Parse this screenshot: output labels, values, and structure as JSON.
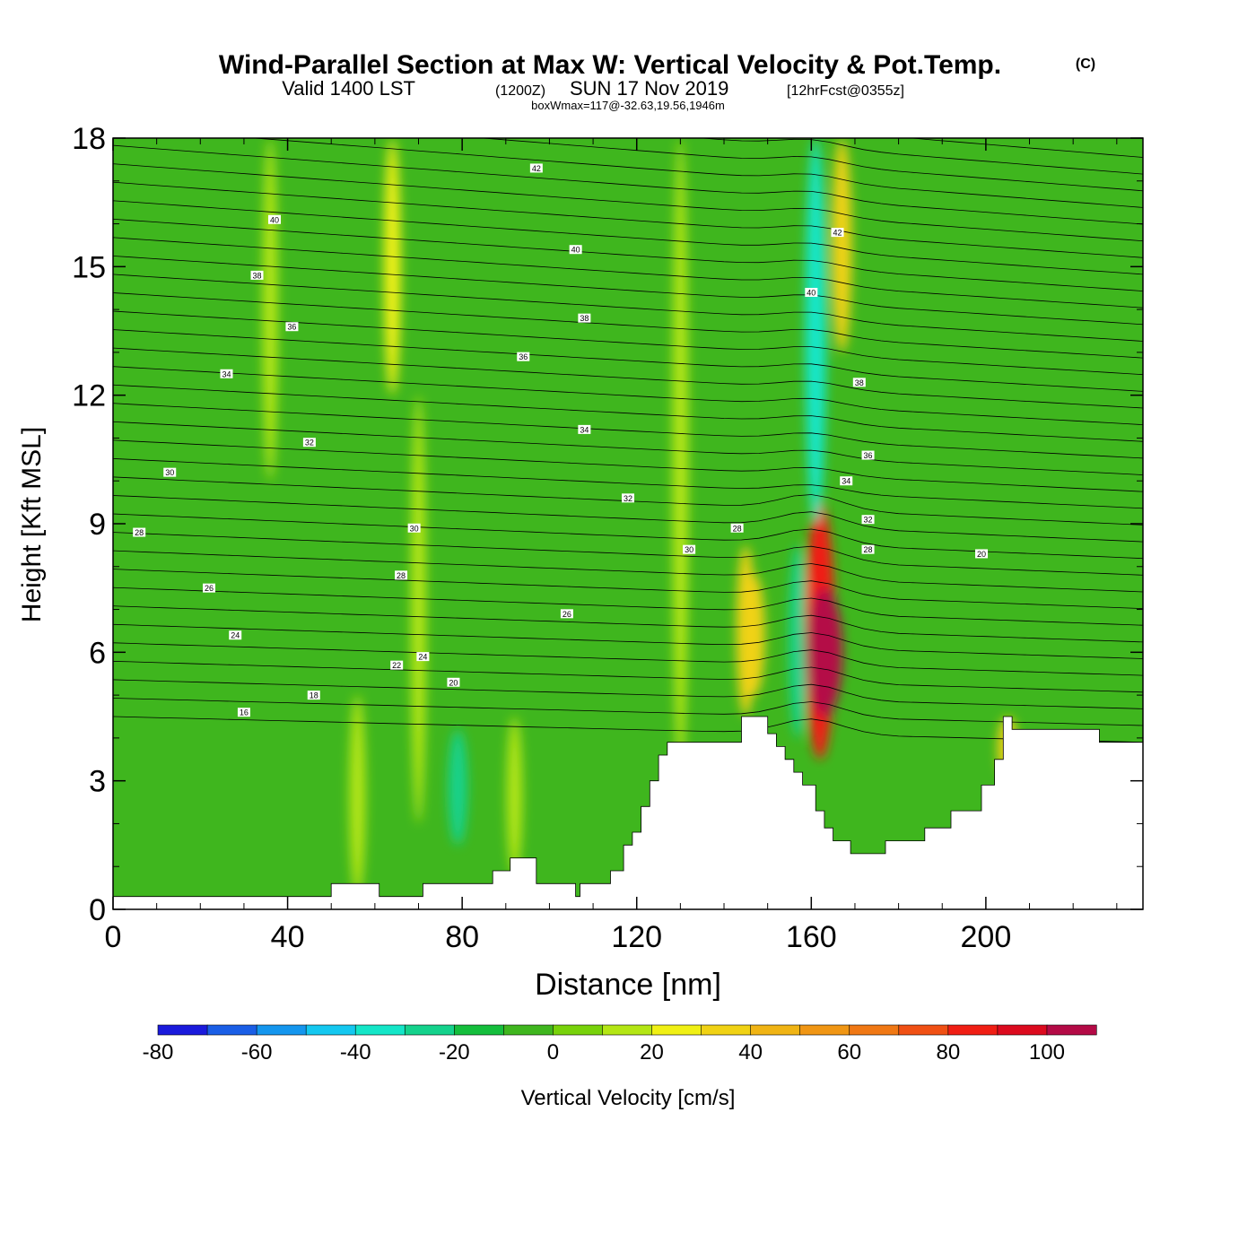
{
  "header": {
    "title": "Wind-Parallel Section at Max W: Vertical Velocity & Pot.Temp.",
    "copyright": "(C)",
    "valid_prefix": "Valid 1400 LST",
    "valid_utc": "(1200Z)",
    "valid_date": "SUN 17 Nov 2019",
    "forecast": "[12hrFcst@0355z]",
    "boxwmax": "boxWmax=117@-32.63,19.56,1946m"
  },
  "colors": {
    "plot_background": "#3fb61e",
    "terrain": "#ffffff",
    "contour": "#000000",
    "colorbar_edges": "#000000"
  },
  "chart_data": {
    "type": "heatmap",
    "xlabel": "Distance [nm]",
    "ylabel": "Height [Kft MSL]",
    "xlim": [
      0,
      236
    ],
    "ylim": [
      0,
      18
    ],
    "x_ticks": [
      "0",
      "40",
      "80",
      "120",
      "160",
      "200"
    ],
    "x_tick_values": [
      0,
      40,
      80,
      120,
      160,
      200
    ],
    "y_ticks": [
      "0",
      "3",
      "6",
      "9",
      "12",
      "15",
      "18"
    ],
    "y_tick_values": [
      0,
      3,
      6,
      9,
      12,
      15,
      18
    ],
    "colorbar": {
      "label": "Vertical Velocity [cm/s]",
      "levels": [
        -80,
        -70,
        -60,
        -50,
        -40,
        -30,
        -20,
        -10,
        0,
        10,
        20,
        30,
        40,
        50,
        60,
        70,
        80,
        90,
        100,
        110
      ],
      "tick_labels": [
        "-80",
        "-60",
        "-40",
        "-20",
        "0",
        "20",
        "40",
        "60",
        "80",
        "100"
      ],
      "tick_values": [
        -80,
        -60,
        -40,
        -20,
        0,
        20,
        40,
        60,
        80,
        100
      ],
      "colors": [
        "#1a1adc",
        "#1a5ee6",
        "#1496ee",
        "#14c8f0",
        "#14e6c8",
        "#14d28c",
        "#14be3c",
        "#3fb61e",
        "#78d20a",
        "#b4e614",
        "#f0f014",
        "#f0d214",
        "#f0b414",
        "#f09614",
        "#f07814",
        "#f05014",
        "#f01e14",
        "#dc0a1e",
        "#b40a46"
      ]
    },
    "vertical_velocity_bands": [
      {
        "x": 56,
        "y0": 0.3,
        "y1": 5.0,
        "w": 17
      },
      {
        "x": 70,
        "y0": 2.0,
        "y1": 12.0,
        "w": 12
      },
      {
        "x": 92,
        "y0": 0.8,
        "y1": 4.5,
        "w": 14
      },
      {
        "x": 130,
        "y0": 3.0,
        "y1": 18.0,
        "w": 15
      },
      {
        "x": 145,
        "y0": 4.5,
        "y1": 8.5,
        "w": 30
      },
      {
        "x": 147,
        "y0": 5.0,
        "y1": 7.8,
        "w": 38
      },
      {
        "x": 157,
        "y0": 4.0,
        "y1": 8.5,
        "w": -30
      },
      {
        "x": 162,
        "y0": 3.5,
        "y1": 9.5,
        "w": 80
      },
      {
        "x": 163,
        "y0": 4.5,
        "y1": 7.5,
        "w": 110
      },
      {
        "x": 161,
        "y0": 9.0,
        "y1": 18.0,
        "w": -40
      },
      {
        "x": 167,
        "y0": 13.0,
        "y1": 18.0,
        "w": 35
      },
      {
        "x": 79,
        "y0": 1.5,
        "y1": 4.2,
        "w": -30
      },
      {
        "x": 36,
        "y0": 10.0,
        "y1": 18.0,
        "w": 12
      },
      {
        "x": 64,
        "y0": 12.0,
        "y1": 18.0,
        "w": 20
      },
      {
        "x": 205,
        "y0": 3.0,
        "y1": 4.5,
        "w": 35
      }
    ],
    "theta_contour_labels": [
      {
        "label": "42",
        "x": 97,
        "y": 17.3
      },
      {
        "label": "40",
        "x": 37,
        "y": 16.1
      },
      {
        "label": "40",
        "x": 106,
        "y": 15.4
      },
      {
        "label": "38",
        "x": 33,
        "y": 14.8
      },
      {
        "label": "38",
        "x": 108,
        "y": 13.8
      },
      {
        "label": "36",
        "x": 41,
        "y": 13.6
      },
      {
        "label": "36",
        "x": 94,
        "y": 12.9
      },
      {
        "label": "34",
        "x": 26,
        "y": 12.5
      },
      {
        "label": "34",
        "x": 108,
        "y": 11.2
      },
      {
        "label": "32",
        "x": 45,
        "y": 10.9
      },
      {
        "label": "32",
        "x": 118,
        "y": 9.6
      },
      {
        "label": "30",
        "x": 13,
        "y": 10.2
      },
      {
        "label": "30",
        "x": 69,
        "y": 8.9
      },
      {
        "label": "30",
        "x": 132,
        "y": 8.4
      },
      {
        "label": "28",
        "x": 6,
        "y": 8.8
      },
      {
        "label": "28",
        "x": 66,
        "y": 7.8
      },
      {
        "label": "28",
        "x": 143,
        "y": 8.9
      },
      {
        "label": "26",
        "x": 22,
        "y": 7.5
      },
      {
        "label": "26",
        "x": 104,
        "y": 6.9
      },
      {
        "label": "24",
        "x": 28,
        "y": 6.4
      },
      {
        "label": "24",
        "x": 71,
        "y": 5.9
      },
      {
        "label": "22",
        "x": 65,
        "y": 5.7
      },
      {
        "label": "20",
        "x": 78,
        "y": 5.3
      },
      {
        "label": "20",
        "x": 199,
        "y": 8.3
      },
      {
        "label": "18",
        "x": 46,
        "y": 5.0
      },
      {
        "label": "16",
        "x": 30,
        "y": 4.6
      },
      {
        "label": "42",
        "x": 166,
        "y": 15.8
      },
      {
        "label": "40",
        "x": 160,
        "y": 14.4
      },
      {
        "label": "38",
        "x": 171,
        "y": 12.3
      },
      {
        "label": "36",
        "x": 173,
        "y": 10.6
      },
      {
        "label": "34",
        "x": 168,
        "y": 10.0
      },
      {
        "label": "32",
        "x": 173,
        "y": 9.1
      },
      {
        "label": "28",
        "x": 173,
        "y": 8.4
      }
    ],
    "terrain_height_profile": {
      "x": [
        0,
        50,
        50,
        61,
        61,
        71,
        71,
        87,
        87,
        91,
        91,
        97,
        97,
        106,
        106,
        107,
        107,
        114,
        114,
        117,
        117,
        119,
        119,
        121,
        121,
        123,
        123,
        125,
        125,
        127,
        127,
        144,
        144,
        150,
        150,
        152,
        152,
        154,
        154,
        156,
        156,
        158,
        158,
        161,
        161,
        163,
        163,
        165,
        165,
        169,
        169,
        177,
        177,
        186,
        186,
        192,
        192,
        199,
        199,
        202,
        202,
        204,
        204,
        206,
        206,
        226,
        226,
        229,
        229,
        236
      ],
      "height": [
        0.3,
        0.3,
        0.6,
        0.6,
        0.3,
        0.3,
        0.6,
        0.6,
        0.9,
        0.9,
        1.2,
        1.2,
        0.6,
        0.6,
        0.3,
        0.3,
        0.6,
        0.6,
        0.9,
        0.9,
        1.5,
        1.5,
        1.8,
        1.8,
        2.4,
        2.4,
        3.0,
        3.0,
        3.6,
        3.6,
        3.9,
        3.9,
        4.5,
        4.5,
        4.1,
        4.1,
        3.8,
        3.8,
        3.5,
        3.5,
        3.2,
        3.2,
        2.9,
        2.9,
        2.3,
        2.3,
        1.9,
        1.9,
        1.6,
        1.6,
        1.3,
        1.3,
        1.6,
        1.6,
        1.9,
        1.9,
        2.3,
        2.3,
        2.9,
        2.9,
        3.5,
        3.5,
        4.5,
        4.5,
        4.2,
        4.2,
        3.9,
        3.9,
        3.9,
        3.9
      ]
    }
  }
}
